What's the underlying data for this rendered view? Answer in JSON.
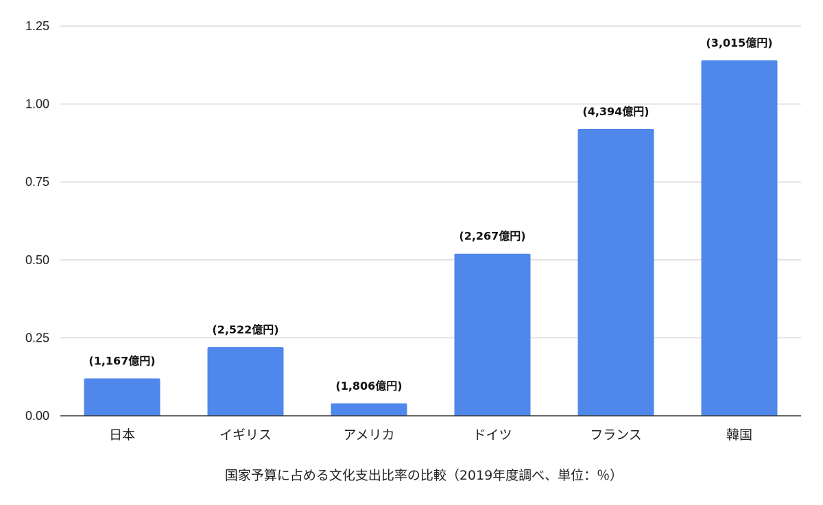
{
  "chart_data": {
    "type": "bar",
    "title": "",
    "xlabel": "国家予算に占める文化支出比率の比較（2019年度調べ、単位：％）",
    "ylabel": "",
    "ylim": [
      0,
      1.25
    ],
    "yticks": [
      "0.00",
      "0.25",
      "0.50",
      "0.75",
      "1.00",
      "1.25"
    ],
    "grid": true,
    "legend": "none",
    "categories": [
      "日本",
      "イギリス",
      "アメリカ",
      "ドイツ",
      "フランス",
      "韓国"
    ],
    "values": [
      0.12,
      0.22,
      0.04,
      0.52,
      0.92,
      1.14
    ],
    "data_labels": [
      "(1,167億円)",
      "(2,522億円)",
      "(1,806億円)",
      "(2,267億円)",
      "(4,394億円)",
      "(3,015億円)"
    ],
    "colors": {
      "bar": "#4f87ea",
      "grid": "#d9d9d9",
      "axis": "#333333"
    }
  }
}
